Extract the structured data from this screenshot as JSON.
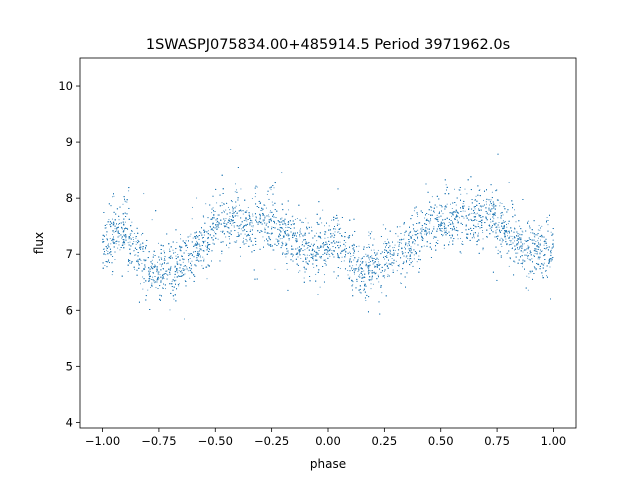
{
  "colors": {
    "marker": "#1f77b4",
    "axes": "#000000",
    "background": "#ffffff"
  },
  "chart_data": {
    "type": "scatter",
    "title": "1SWASPJ075834.00+485914.5 Period 3971962.0s",
    "xlabel": "phase",
    "ylabel": "flux",
    "xlim": [
      -1.1,
      1.1
    ],
    "ylim": [
      3.9,
      10.5
    ],
    "grid": false,
    "legend": "none",
    "xticks": [
      -1.0,
      -0.75,
      -0.5,
      -0.25,
      0.0,
      0.25,
      0.5,
      0.75,
      1.0
    ],
    "xtick_labels": [
      "−1.00",
      "−0.75",
      "−0.50",
      "−0.25",
      "0.00",
      "0.25",
      "0.50",
      "0.75",
      "1.00"
    ],
    "yticks": [
      4,
      5,
      6,
      7,
      8,
      9,
      10
    ],
    "ytick_labels": [
      "4",
      "5",
      "6",
      "7",
      "8",
      "9",
      "10"
    ],
    "series": [
      {
        "x": [
          -1.0,
          -0.95,
          -0.9,
          -0.85,
          -0.8,
          -0.75,
          -0.7,
          -0.65,
          -0.6,
          -0.55,
          -0.5,
          -0.45,
          -0.4,
          -0.35,
          -0.3,
          -0.25,
          -0.2,
          -0.15,
          -0.1,
          -0.05,
          0.0,
          0.05,
          0.1,
          0.15,
          0.2,
          0.25,
          0.3,
          0.35,
          0.4,
          0.45,
          0.5,
          0.55,
          0.6,
          0.65,
          0.7,
          0.75,
          0.8,
          0.85,
          0.9,
          0.95,
          1.0
        ],
        "y": [
          7.1,
          7.4,
          7.5,
          7.0,
          6.7,
          6.7,
          6.8,
          6.9,
          7.0,
          7.2,
          7.5,
          7.6,
          7.6,
          7.5,
          7.6,
          7.6,
          7.4,
          7.2,
          7.1,
          7.1,
          7.1,
          7.3,
          6.9,
          6.7,
          6.8,
          6.9,
          7.0,
          7.1,
          7.3,
          7.5,
          7.6,
          7.7,
          7.6,
          7.6,
          7.7,
          7.6,
          7.4,
          7.2,
          7.1,
          7.1,
          7.1
        ]
      }
    ]
  }
}
